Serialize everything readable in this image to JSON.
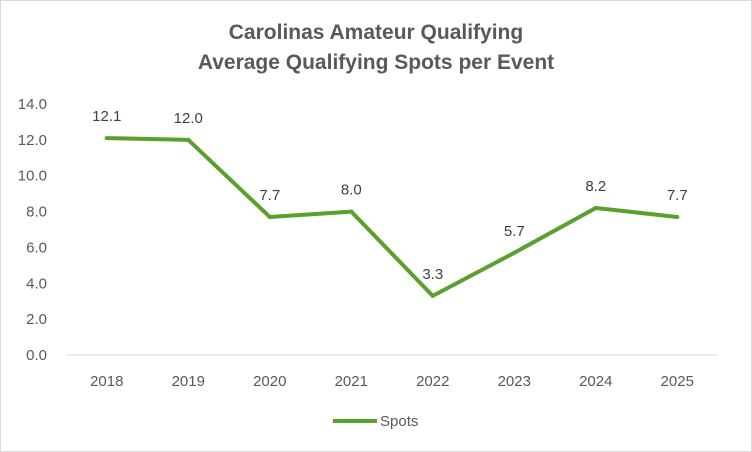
{
  "chart_data": {
    "type": "line",
    "title_line1": "Carolinas Amateur Qualifying",
    "title_line2": "Average Qualifying Spots per Event",
    "categories": [
      "2018",
      "2019",
      "2020",
      "2021",
      "2022",
      "2023",
      "2024",
      "2025"
    ],
    "series": [
      {
        "name": "Spots",
        "values": [
          12.1,
          12.0,
          7.7,
          8.0,
          3.3,
          5.7,
          8.2,
          7.7
        ],
        "labels": [
          "12.1",
          "12.0",
          "7.7",
          "8.0",
          "3.3",
          "5.7",
          "8.2",
          "7.7"
        ],
        "color": "#5aa02c"
      }
    ],
    "ylim": [
      0,
      14
    ],
    "yticks": [
      "0.0",
      "2.0",
      "4.0",
      "6.0",
      "8.0",
      "10.0",
      "12.0",
      "14.0"
    ],
    "ytick_values": [
      0,
      2,
      4,
      6,
      8,
      10,
      12,
      14
    ],
    "grid": false,
    "legend": "bottom",
    "xlabel": "",
    "ylabel": ""
  }
}
